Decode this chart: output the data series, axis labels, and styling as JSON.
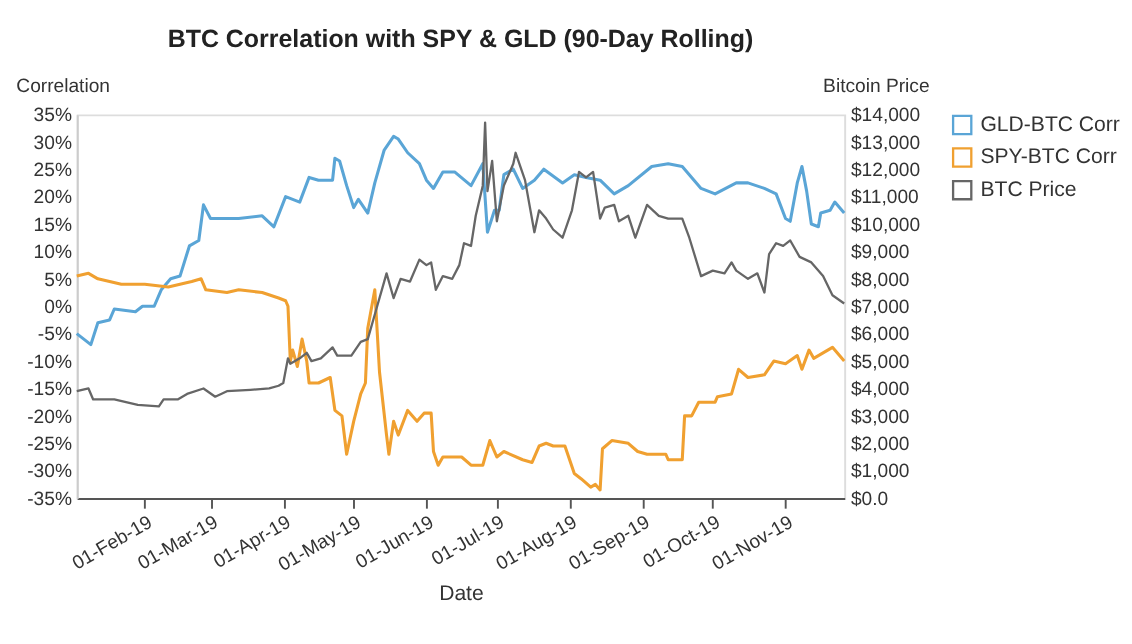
{
  "chart_data": {
    "type": "line",
    "title": "BTC Correlation with SPY & GLD (90-Day Rolling)",
    "xlabel": "Date",
    "ylabel": "Correlation",
    "y2label": "Bitcoin Price",
    "xlim": [
      "2019-01-03",
      "2019-11-26"
    ],
    "xticks": [
      {
        "value": "2019-02-01",
        "label": "01-Feb-19"
      },
      {
        "value": "2019-03-01",
        "label": "01-Mar-19"
      },
      {
        "value": "2019-04-01",
        "label": "01-Apr-19"
      },
      {
        "value": "2019-05-01",
        "label": "01-May-19"
      },
      {
        "value": "2019-06-01",
        "label": "01-Jun-19"
      },
      {
        "value": "2019-07-01",
        "label": "01-Jul-19"
      },
      {
        "value": "2019-08-01",
        "label": "01-Aug-19"
      },
      {
        "value": "2019-09-01",
        "label": "01-Sep-19"
      },
      {
        "value": "2019-10-01",
        "label": "01-Oct-19"
      },
      {
        "value": "2019-11-01",
        "label": "01-Nov-19"
      }
    ],
    "ylim": [
      -35,
      35
    ],
    "yticks": [
      {
        "value": -35,
        "label": "-35%"
      },
      {
        "value": -30,
        "label": "-30%"
      },
      {
        "value": -25,
        "label": "-25%"
      },
      {
        "value": -20,
        "label": "-20%"
      },
      {
        "value": -15,
        "label": "-15%"
      },
      {
        "value": -10,
        "label": "-10%"
      },
      {
        "value": -5,
        "label": "-5%"
      },
      {
        "value": 0,
        "label": "0%"
      },
      {
        "value": 5,
        "label": "5%"
      },
      {
        "value": 10,
        "label": "10%"
      },
      {
        "value": 15,
        "label": "15%"
      },
      {
        "value": 20,
        "label": "20%"
      },
      {
        "value": 25,
        "label": "25%"
      },
      {
        "value": 30,
        "label": "30%"
      },
      {
        "value": 35,
        "label": "35%"
      }
    ],
    "y2lim": [
      0,
      14000
    ],
    "y2ticks": [
      {
        "value": 0,
        "label": "$0.0"
      },
      {
        "value": 1000,
        "label": "$1,000"
      },
      {
        "value": 2000,
        "label": "$2,000"
      },
      {
        "value": 3000,
        "label": "$3,000"
      },
      {
        "value": 4000,
        "label": "$4,000"
      },
      {
        "value": 5000,
        "label": "$5,000"
      },
      {
        "value": 6000,
        "label": "$6,000"
      },
      {
        "value": 7000,
        "label": "$7,000"
      },
      {
        "value": 8000,
        "label": "$8,000"
      },
      {
        "value": 9000,
        "label": "$9,000"
      },
      {
        "value": 10000,
        "label": "$10,000"
      },
      {
        "value": 11000,
        "label": "$11,000"
      },
      {
        "value": 12000,
        "label": "$12,000"
      },
      {
        "value": 13000,
        "label": "$13,000"
      },
      {
        "value": 14000,
        "label": "$14,000"
      }
    ],
    "grid": false,
    "legend": "top right",
    "marker": "none",
    "line_style": "solid",
    "series": [
      {
        "name": "GLD-BTC Corr",
        "color": "#5aa5d6",
        "x": [
          "2019-01-03",
          "2019-01-09",
          "2019-01-12",
          "2019-01-17",
          "2019-01-19",
          "2019-01-28",
          "2019-01-31",
          "2019-02-05",
          "2019-02-08",
          "2019-02-12",
          "2019-02-16",
          "2019-02-20",
          "2019-02-24",
          "2019-02-26",
          "2019-03-01",
          "2019-03-13",
          "2019-03-23",
          "2019-03-28",
          "2019-04-02",
          "2019-04-08",
          "2019-04-12",
          "2019-04-16",
          "2019-04-22",
          "2019-04-23",
          "2019-04-25",
          "2019-04-28",
          "2019-05-01",
          "2019-05-03",
          "2019-05-07",
          "2019-05-10",
          "2019-05-14",
          "2019-05-18",
          "2019-05-20",
          "2019-05-24",
          "2019-05-29",
          "2019-06-01",
          "2019-06-04",
          "2019-06-08",
          "2019-06-13",
          "2019-06-20",
          "2019-06-25",
          "2019-06-27",
          "2019-06-30",
          "2019-07-02",
          "2019-07-04",
          "2019-07-08",
          "2019-07-12",
          "2019-07-17",
          "2019-07-21",
          "2019-07-29",
          "2019-08-03",
          "2019-08-08",
          "2019-08-14",
          "2019-08-20",
          "2019-08-26",
          "2019-09-05",
          "2019-09-12",
          "2019-09-18",
          "2019-09-26",
          "2019-10-02",
          "2019-10-11",
          "2019-10-16",
          "2019-10-23",
          "2019-10-28",
          "2019-11-01",
          "2019-11-03",
          "2019-11-06",
          "2019-11-08",
          "2019-11-10",
          "2019-11-12",
          "2019-11-15",
          "2019-11-16",
          "2019-11-20",
          "2019-11-22",
          "2019-11-26"
        ],
        "values": [
          -5,
          -7,
          -3,
          -2.5,
          -0.5,
          -1,
          0,
          0,
          3,
          5,
          5.5,
          11,
          12,
          18.5,
          16,
          16,
          16.5,
          14.5,
          20,
          19,
          23.5,
          23,
          23,
          27,
          26.5,
          22,
          18,
          19.5,
          17,
          22.5,
          28.5,
          31,
          30.5,
          28,
          26,
          23,
          21.5,
          24.5,
          24.5,
          22,
          26,
          13.5,
          17.5,
          17.5,
          24,
          25,
          21.5,
          23,
          25,
          22.5,
          24,
          23.5,
          23,
          20.5,
          22,
          25.5,
          26,
          25.5,
          21.5,
          20.5,
          22.5,
          22.5,
          21.5,
          20.5,
          16,
          15.5,
          22.5,
          25.5,
          21,
          15,
          14.5,
          17,
          17.5,
          19,
          17
        ]
      },
      {
        "name": "SPY-BTC Corr",
        "color": "#f0a030",
        "x": [
          "2019-01-03",
          "2019-01-08",
          "2019-01-12",
          "2019-01-22",
          "2019-02-01",
          "2019-02-11",
          "2019-02-21",
          "2019-02-25",
          "2019-02-27",
          "2019-03-08",
          "2019-03-13",
          "2019-03-23",
          "2019-03-30",
          "2019-04-02",
          "2019-04-03",
          "2019-04-04",
          "2019-04-05",
          "2019-04-07",
          "2019-04-09",
          "2019-04-11",
          "2019-04-12",
          "2019-04-16",
          "2019-04-21",
          "2019-04-23",
          "2019-04-26",
          "2019-04-28",
          "2019-05-01",
          "2019-05-04",
          "2019-05-06",
          "2019-05-07",
          "2019-05-10",
          "2019-05-12",
          "2019-05-15",
          "2019-05-16",
          "2019-05-18",
          "2019-05-20",
          "2019-05-24",
          "2019-05-28",
          "2019-05-31",
          "2019-06-03",
          "2019-06-04",
          "2019-06-06",
          "2019-06-08",
          "2019-06-16",
          "2019-06-20",
          "2019-06-25",
          "2019-06-28",
          "2019-07-01",
          "2019-07-04",
          "2019-07-12",
          "2019-07-16",
          "2019-07-19",
          "2019-07-22",
          "2019-07-25",
          "2019-07-30",
          "2019-08-03",
          "2019-08-06",
          "2019-08-10",
          "2019-08-12",
          "2019-08-14",
          "2019-08-15",
          "2019-08-19",
          "2019-08-26",
          "2019-08-30",
          "2019-09-03",
          "2019-09-11",
          "2019-09-12",
          "2019-09-18",
          "2019-09-19",
          "2019-09-22",
          "2019-09-25",
          "2019-09-27",
          "2019-10-02",
          "2019-10-03",
          "2019-10-09",
          "2019-10-12",
          "2019-10-16",
          "2019-10-23",
          "2019-10-27",
          "2019-11-01",
          "2019-11-06",
          "2019-11-08",
          "2019-11-11",
          "2019-11-13",
          "2019-11-17",
          "2019-11-21",
          "2019-11-26"
        ],
        "values": [
          5.5,
          6,
          5,
          4,
          4,
          3.5,
          4.5,
          5,
          3,
          2.5,
          3,
          2.5,
          1.5,
          1,
          0,
          -10,
          -8,
          -11,
          -6,
          -10,
          -14,
          -14,
          -13,
          -19,
          -20,
          -27,
          -21,
          -16,
          -14,
          -4,
          3,
          -12,
          -23.5,
          -27,
          -21,
          -23.5,
          -19,
          -21,
          -19.5,
          -19.5,
          -26.5,
          -29,
          -27.5,
          -27.5,
          -29,
          -29,
          -24.5,
          -27.5,
          -26.5,
          -28,
          -28.5,
          -25.5,
          -25,
          -25.5,
          -25.5,
          -30.5,
          -31.5,
          -33,
          -32.5,
          -33.5,
          -26,
          -24.5,
          -25,
          -26.5,
          -27,
          -27,
          -28,
          -28,
          -20,
          -20,
          -17.5,
          -17.5,
          -17.5,
          -16.5,
          -16,
          -11.5,
          -13,
          -12.5,
          -10,
          -10.5,
          -9,
          -11.5,
          -8,
          -9.5,
          -8.5,
          -7.5,
          -10
        ]
      },
      {
        "name": "BTC Price",
        "color": "#666666",
        "axis": "y2",
        "x": [
          "2019-01-03",
          "2019-01-08",
          "2019-01-10",
          "2019-01-19",
          "2019-01-29",
          "2019-02-07",
          "2019-02-09",
          "2019-02-15",
          "2019-02-19",
          "2019-02-26",
          "2019-03-03",
          "2019-03-08",
          "2019-03-18",
          "2019-03-26",
          "2019-03-30",
          "2019-04-01",
          "2019-04-03",
          "2019-04-04",
          "2019-04-08",
          "2019-04-11",
          "2019-04-13",
          "2019-04-17",
          "2019-04-22",
          "2019-04-24",
          "2019-04-30",
          "2019-05-04",
          "2019-05-07",
          "2019-05-11",
          "2019-05-14",
          "2019-05-15",
          "2019-05-18",
          "2019-05-21",
          "2019-05-25",
          "2019-05-29",
          "2019-06-01",
          "2019-06-03",
          "2019-06-05",
          "2019-06-08",
          "2019-06-12",
          "2019-06-15",
          "2019-06-17",
          "2019-06-20",
          "2019-06-22",
          "2019-06-25",
          "2019-06-26",
          "2019-06-27",
          "2019-06-29",
          "2019-07-01",
          "2019-07-04",
          "2019-07-08",
          "2019-07-09",
          "2019-07-13",
          "2019-07-17",
          "2019-07-19",
          "2019-07-22",
          "2019-07-25",
          "2019-07-29",
          "2019-08-02",
          "2019-08-05",
          "2019-08-08",
          "2019-08-11",
          "2019-08-14",
          "2019-08-16",
          "2019-08-20",
          "2019-08-22",
          "2019-08-26",
          "2019-08-29",
          "2019-09-03",
          "2019-09-08",
          "2019-09-12",
          "2019-09-18",
          "2019-09-21",
          "2019-09-26",
          "2019-10-01",
          "2019-10-06",
          "2019-10-09",
          "2019-10-11",
          "2019-10-16",
          "2019-10-20",
          "2019-10-23",
          "2019-10-25",
          "2019-10-28",
          "2019-10-31",
          "2019-11-03",
          "2019-11-07",
          "2019-11-12",
          "2019-11-17",
          "2019-11-21",
          "2019-11-26"
        ],
        "values": [
          3900,
          4000,
          3600,
          3600,
          3400,
          3350,
          3600,
          3600,
          3800,
          4000,
          3700,
          3900,
          3950,
          4000,
          4100,
          4200,
          5100,
          4900,
          5100,
          5300,
          5000,
          5100,
          5500,
          5200,
          5200,
          5700,
          5800,
          7000,
          7900,
          8200,
          7300,
          8000,
          7900,
          8700,
          8500,
          8600,
          7600,
          8100,
          8000,
          8500,
          9300,
          9200,
          10300,
          11400,
          13700,
          11200,
          12300,
          10100,
          11400,
          12200,
          12600,
          11600,
          9700,
          10500,
          10200,
          9800,
          9500,
          10500,
          11900,
          11700,
          11900,
          10200,
          10600,
          10700,
          10100,
          10300,
          9500,
          10700,
          10300,
          10200,
          10200,
          9500,
          8100,
          8300,
          8200,
          8600,
          8300,
          8000,
          8200,
          7500,
          8900,
          9300,
          9200,
          9400,
          8800,
          8600,
          8100,
          7400,
          7100
        ]
      }
    ]
  }
}
